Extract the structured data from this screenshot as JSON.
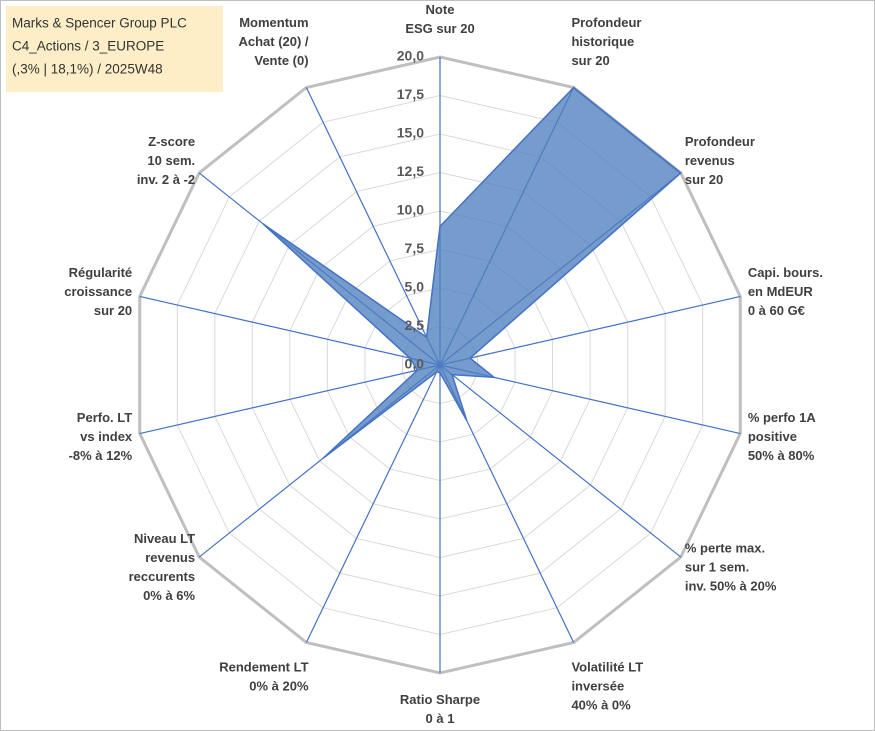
{
  "chart_data": {
    "type": "radar",
    "title": [
      "Marks & Spencer Group PLC",
      "C4_Actions / 3_EUROPE",
      "(,3% | 18,1%) / 2025W48"
    ],
    "categories": [
      [
        "Note",
        "ESG sur 20"
      ],
      [
        "Profondeur",
        "historique",
        "sur 20"
      ],
      [
        "Profondeur",
        "revenus",
        "sur 20"
      ],
      [
        "Capi. bours.",
        "en MdEUR",
        "0 à 60 G€"
      ],
      [
        "% perfo 1A",
        "positive",
        "50% à 80%"
      ],
      [
        "% perte max.",
        "sur 1 sem.",
        "inv. 50% à 20%"
      ],
      [
        "Volatilité LT",
        "inversée",
        "40% à 0%"
      ],
      [
        "Ratio Sharpe",
        "0 à 1"
      ],
      [
        "Rendement LT",
        "0% à 20%"
      ],
      [
        "Niveau LT",
        "revenus",
        "reccurents",
        "0% à 6%"
      ],
      [
        "Perfo. LT",
        "vs index",
        "-8% à 12%"
      ],
      [
        "Régularité",
        "croissance",
        "sur 20"
      ],
      [
        "Z-score",
        "10 sem.",
        "inv. 2 à -2"
      ],
      [
        "Momentum",
        "Achat (20) /",
        "Vente (0)"
      ]
    ],
    "values": [
      9,
      20,
      20,
      2,
      3.6,
      1,
      4,
      0.5,
      0.5,
      9.7,
      1.5,
      2,
      14.7,
      2
    ],
    "color": "#4f7fbf",
    "ylim": [
      0,
      20
    ],
    "yticks": [
      {
        "value": 0,
        "label": "0,0"
      },
      {
        "value": 2.5,
        "label": "2,5"
      },
      {
        "value": 5,
        "label": "5,0"
      },
      {
        "value": 7.5,
        "label": "7,5"
      },
      {
        "value": 10,
        "label": "10,0"
      },
      {
        "value": 12.5,
        "label": "12,5"
      },
      {
        "value": 15,
        "label": "15,0"
      },
      {
        "value": 17.5,
        "label": "17,5"
      },
      {
        "value": 20,
        "label": "20,0"
      }
    ],
    "grid": true
  }
}
